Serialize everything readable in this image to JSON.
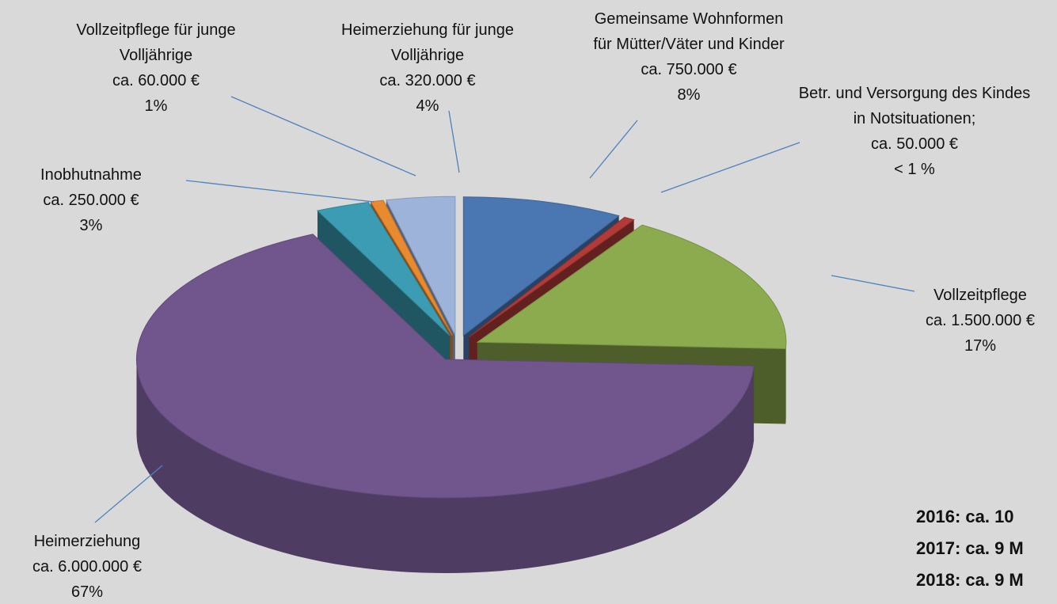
{
  "chart_data": {
    "type": "pie",
    "categories": [
      "Gemeinsame Wohnformen für Mütter/Väter und Kinder",
      "Betr. und Versorgung des Kindes in Notsituationen;",
      "Vollzeitpflege",
      "Heimerziehung",
      "Inobhutnahme",
      "Vollzeitpflege für junge Volljährige",
      "Heimerziehung für junge Volljährige"
    ],
    "values": [
      750000,
      50000,
      1500000,
      6000000,
      250000,
      60000,
      320000
    ],
    "value_labels": [
      "ca. 750.000 €",
      "ca. 50.000 €",
      "ca. 1.500.000 €",
      "ca. 6.000.000 €",
      "ca. 250.000 €",
      "ca. 60.000 €",
      "ca. 320.000 €"
    ],
    "percent_labels": [
      "8%",
      "< 1 %",
      "17%",
      "67%",
      "3%",
      "1%",
      "4%"
    ],
    "colors": [
      "#4a77b2",
      "#b23b37",
      "#8cab4f",
      "#71568e",
      "#3b9cb3",
      "#ea8a2e",
      "#9db3da"
    ],
    "notes": [
      "2016: ca. 10",
      "2017: ca. 9 M",
      "2018: ca. 9 M"
    ]
  }
}
